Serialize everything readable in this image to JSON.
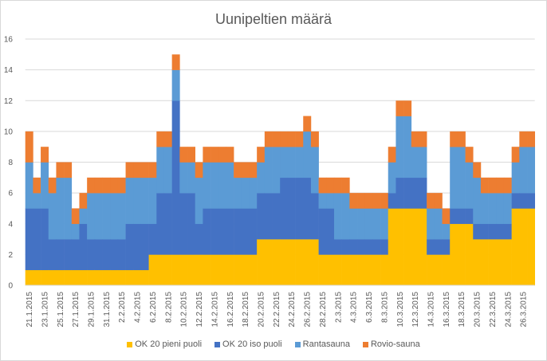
{
  "chart_data": {
    "type": "bar",
    "stacked": true,
    "title": "Uunipeltien määrä",
    "xlabel": "",
    "ylabel": "",
    "ylim": [
      0,
      16
    ],
    "yticks": [
      "0",
      "2",
      "4",
      "6",
      "8",
      "10",
      "12",
      "14",
      "16"
    ],
    "grid": true,
    "legend_position": "bottom",
    "categories": [
      "21.1.2015",
      "22.1.2015",
      "23.1.2015",
      "24.1.2015",
      "25.1.2015",
      "26.1.2015",
      "27.1.2015",
      "28.1.2015",
      "29.1.2015",
      "30.1.2015",
      "31.1.2015",
      "1.2.2015",
      "2.2.2015",
      "3.2.2015",
      "4.2.2015",
      "5.2.2015",
      "6.2.2015",
      "7.2.2015",
      "8.2.2015",
      "9.2.2015",
      "10.2.2015",
      "11.2.2015",
      "12.2.2015",
      "13.2.2015",
      "14.2.2015",
      "15.2.2015",
      "16.2.2015",
      "17.2.2015",
      "18.2.2015",
      "19.2.2015",
      "20.2.2015",
      "21.2.2015",
      "22.2.2015",
      "23.2.2015",
      "24.2.2015",
      "25.2.2015",
      "26.2.2015",
      "27.2.2015",
      "28.2.2015",
      "1.3.2015",
      "2.3.2015",
      "3.3.2015",
      "4.3.2015",
      "5.3.2015",
      "6.3.2015",
      "7.3.2015",
      "8.3.2015",
      "9.3.2015",
      "10.3.2015",
      "11.3.2015",
      "12.3.2015",
      "13.3.2015",
      "14.3.2015",
      "15.3.2015",
      "16.3.2015",
      "17.3.2015",
      "18.3.2015",
      "19.3.2015",
      "20.3.2015",
      "21.3.2015",
      "22.3.2015",
      "23.3.2015",
      "24.3.2015",
      "25.3.2015",
      "26.3.2015",
      "27.3.2015"
    ],
    "visible_tick_labels": [
      "21.1.2015",
      "23.1.2015",
      "25.1.2015",
      "27.1.2015",
      "29.1.2015",
      "31.1.2015",
      "2.2.2015",
      "4.2.2015",
      "6.2.2015",
      "8.2.2015",
      "10.2.2015",
      "12.2.2015",
      "14.2.2015",
      "16.2.2015",
      "18.2.2015",
      "20.2.2015",
      "22.2.2015",
      "24.2.2015",
      "26.2.2015",
      "28.2.2015",
      "2.3.2015",
      "4.3.2015",
      "6.3.2015",
      "8.3.2015",
      "10.3.2015",
      "12.3.2015",
      "14.3.2015",
      "16.3.2015",
      "18.3.2015",
      "20.3.2015",
      "22.3.2015",
      "24.3.2015",
      "26.3.2015"
    ],
    "series": [
      {
        "name": "OK 20 pieni puoli",
        "color": "#FFC000",
        "values": [
          1,
          1,
          1,
          1,
          1,
          1,
          1,
          1,
          1,
          1,
          1,
          1,
          1,
          1,
          1,
          1,
          2,
          2,
          2,
          2,
          2,
          2,
          2,
          2,
          2,
          2,
          2,
          2,
          2,
          2,
          3,
          3,
          3,
          3,
          3,
          3,
          3,
          3,
          2,
          2,
          2,
          2,
          2,
          2,
          2,
          2,
          2,
          5,
          5,
          5,
          5,
          5,
          2,
          2,
          2,
          4,
          4,
          4,
          3,
          3,
          3,
          3,
          3,
          5,
          5,
          5
        ]
      },
      {
        "name": "OK 20 iso puoli",
        "color": "#4472C4",
        "values": [
          4,
          4,
          4,
          2,
          2,
          2,
          2,
          3,
          2,
          2,
          2,
          2,
          2,
          3,
          3,
          3,
          2,
          4,
          4,
          10,
          4,
          4,
          2,
          3,
          3,
          3,
          3,
          3,
          3,
          3,
          3,
          3,
          3,
          4,
          4,
          4,
          4,
          3,
          3,
          3,
          1,
          1,
          1,
          1,
          1,
          1,
          1,
          1,
          2,
          2,
          2,
          2,
          1,
          1,
          1,
          1,
          1,
          1,
          1,
          1,
          1,
          1,
          1,
          1,
          1,
          1
        ]
      },
      {
        "name": "Rantasauna",
        "color": "#5B9BD5",
        "values": [
          3,
          1,
          3,
          3,
          4,
          4,
          1,
          1,
          3,
          3,
          3,
          3,
          3,
          3,
          3,
          3,
          3,
          3,
          3,
          2,
          2,
          2,
          3,
          3,
          3,
          3,
          3,
          2,
          2,
          2,
          2,
          3,
          3,
          2,
          2,
          2,
          3,
          3,
          1,
          1,
          3,
          3,
          2,
          2,
          2,
          2,
          2,
          2,
          4,
          4,
          2,
          2,
          2,
          2,
          1,
          4,
          4,
          3,
          3,
          2,
          2,
          2,
          2,
          2,
          3,
          3
        ]
      },
      {
        "name": "Rovio-sauna",
        "color": "#ED7D31",
        "values": [
          2,
          1,
          1,
          1,
          1,
          1,
          1,
          1,
          1,
          1,
          1,
          1,
          1,
          1,
          1,
          1,
          1,
          1,
          1,
          1,
          1,
          1,
          1,
          1,
          1,
          1,
          1,
          1,
          1,
          1,
          1,
          1,
          1,
          1,
          1,
          1,
          1,
          1,
          1,
          1,
          1,
          1,
          1,
          1,
          1,
          1,
          1,
          1,
          1,
          1,
          1,
          1,
          1,
          1,
          1,
          1,
          1,
          1,
          1,
          1,
          1,
          1,
          1,
          1,
          1,
          1
        ]
      }
    ]
  }
}
